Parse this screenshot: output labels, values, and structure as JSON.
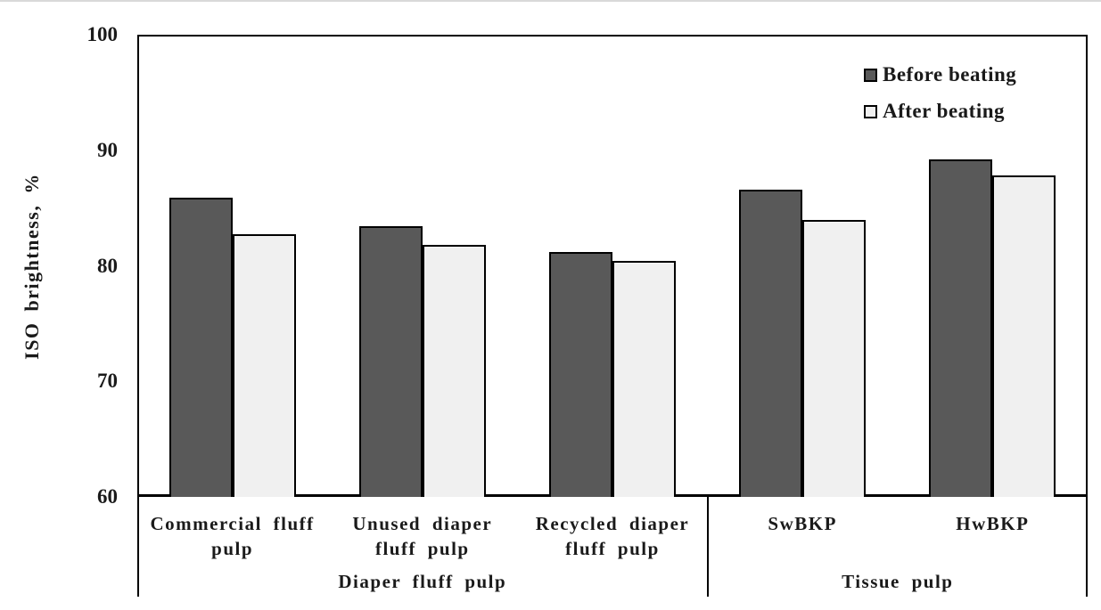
{
  "chart_data": {
    "type": "bar",
    "title": "",
    "ylabel": "ISO brightness, %",
    "ylim": [
      60,
      100
    ],
    "yticks": [
      100,
      90,
      80,
      70,
      60
    ],
    "grid": false,
    "legend_position": "top-right-inside",
    "axis_color": "#000000",
    "bar_outline_color": "#000000",
    "categories": [
      "Commercial fluff pulp",
      "Unused diaper fluff pulp",
      "Recycled diaper fluff pulp",
      "SwBKP",
      "HwBKP"
    ],
    "category_label_lines": [
      [
        "Commercial fluff",
        "pulp"
      ],
      [
        "Unused diaper",
        "fluff pulp"
      ],
      [
        "Recycled diaper",
        "fluff pulp"
      ],
      [
        "SwBKP"
      ],
      [
        "HwBKP"
      ]
    ],
    "series": [
      {
        "name": "Before beating",
        "color": "#595959",
        "values": [
          85.9,
          83.4,
          81.2,
          86.6,
          89.2
        ]
      },
      {
        "name": "After beating",
        "color": "#f0f0f0",
        "values": [
          82.7,
          81.8,
          80.4,
          84.0,
          87.8
        ]
      }
    ],
    "group_labels": [
      {
        "label": "Diaper fluff pulp",
        "start": 0,
        "end": 3
      },
      {
        "label": "Tissue pulp",
        "start": 3,
        "end": 5
      }
    ]
  }
}
